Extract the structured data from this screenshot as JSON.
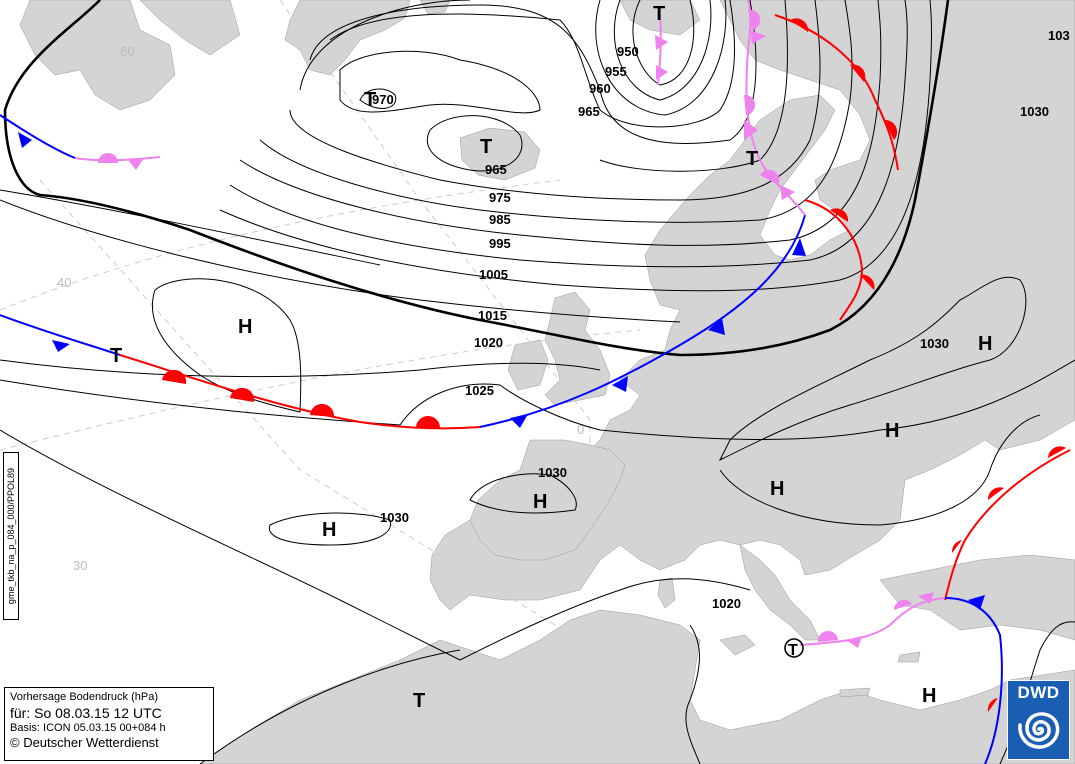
{
  "map": {
    "colors": {
      "land": "#d4d4d4",
      "sea": "#ffffff",
      "isobar": "#000000",
      "warm_front": "#ff0000",
      "cold_front": "#0000ff",
      "occlusion": "#ee82ee"
    },
    "isobar_labels": [
      "970",
      "965",
      "950",
      "955",
      "960",
      "965",
      "975",
      "985",
      "995",
      "1005",
      "1015",
      "1020",
      "1025",
      "1030",
      "1030",
      "1030",
      "1020",
      "1030",
      "103"
    ],
    "pressure_systems": [
      "T",
      "T",
      "T",
      "T",
      "H",
      "H",
      "H",
      "H",
      "H",
      "H",
      "T",
      "H"
    ],
    "grid_labels": [
      "60",
      "40",
      "30",
      "0"
    ]
  },
  "legend": {
    "line1": "Vorhersage Bodendruck (hPa)",
    "line2": "für:  So 08.03.15  12 UTC",
    "line3": "Basis: ICON  05.03.15 00+084 h",
    "line4": "© Deutscher Wetterdienst"
  },
  "side_code": "gme_tkb_na_p_084_000/PPOL89",
  "logo": {
    "text": "DWD"
  }
}
